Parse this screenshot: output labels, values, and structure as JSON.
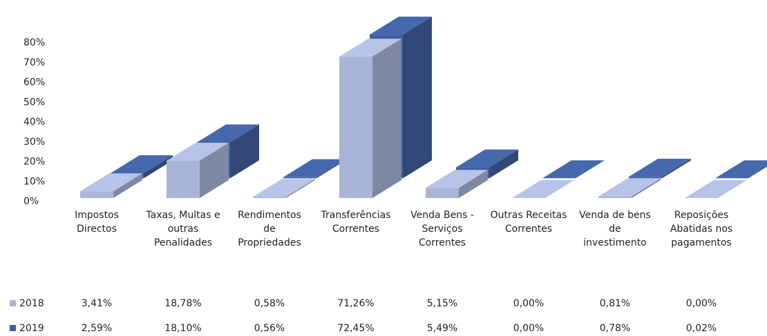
{
  "chart_data": {
    "type": "bar3d",
    "categories": [
      "Impostos Directos",
      "Taxas, Multas e outras Penalidades",
      "Rendimentos de Propriedades",
      "Transferências Correntes",
      "Venda Bens - Serviços Correntes",
      "Outras Receitas Correntes",
      "Venda de bens de investimento",
      "Reposições Abatidas nos pagamentos"
    ],
    "series": [
      {
        "name": "2018",
        "color": "#a9b5d8",
        "values": [
          3.41,
          18.78,
          0.58,
          71.26,
          5.15,
          0.0,
          0.81,
          0.0
        ],
        "value_labels": [
          "3,41%",
          "18,78%",
          "0,58%",
          "71,26%",
          "5,15%",
          "0,00%",
          "0,81%",
          "0,00%"
        ]
      },
      {
        "name": "2019",
        "color": "#41609f",
        "values": [
          2.59,
          18.1,
          0.56,
          72.45,
          5.49,
          0.0,
          0.78,
          0.02
        ],
        "value_labels": [
          "2,59%",
          "18,10%",
          "0,56%",
          "72,45%",
          "5,49%",
          "0,00%",
          "0,78%",
          "0,02%"
        ]
      }
    ],
    "ylim": [
      0,
      80
    ],
    "yticks": [
      {
        "value": 0,
        "label": "0%"
      },
      {
        "value": 10,
        "label": "10%"
      },
      {
        "value": 20,
        "label": "20%"
      },
      {
        "value": 30,
        "label": "30%"
      },
      {
        "value": 40,
        "label": "40%"
      },
      {
        "value": 50,
        "label": "50%"
      },
      {
        "value": 60,
        "label": "60%"
      },
      {
        "value": 70,
        "label": "70%"
      },
      {
        "value": 80,
        "label": "80%"
      }
    ]
  }
}
